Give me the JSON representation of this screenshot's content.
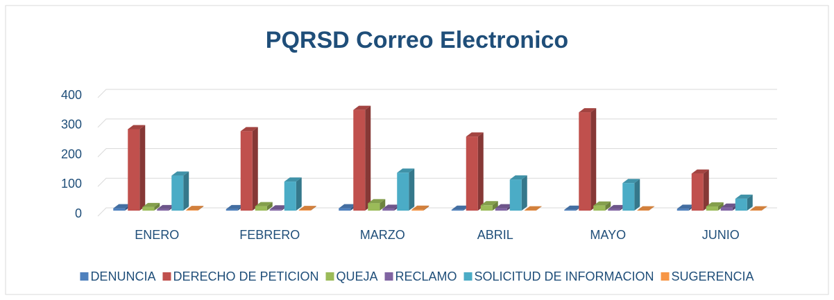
{
  "chart_data": {
    "type": "bar3d",
    "title": "PQRSD Correo Electronico",
    "categories": [
      "ENERO",
      "FEBRERO",
      "MARZO",
      "ABRIL",
      "MAYO",
      "JUNIO"
    ],
    "series": [
      {
        "name": "DENUNCIA",
        "color": "#4f81bd",
        "values": [
          8,
          5,
          8,
          3,
          3,
          6
        ]
      },
      {
        "name": "DERECHO DE PETICION",
        "color": "#c0504d",
        "values": [
          275,
          268,
          340,
          250,
          332,
          125
        ]
      },
      {
        "name": "QUEJA",
        "color": "#9bbb59",
        "values": [
          12,
          15,
          25,
          18,
          17,
          14
        ]
      },
      {
        "name": "RECLAMO",
        "color": "#8064a2",
        "values": [
          5,
          4,
          6,
          8,
          5,
          10
        ]
      },
      {
        "name": "SOLICITUD DE INFORMACION",
        "color": "#4bacc6",
        "values": [
          118,
          98,
          128,
          105,
          93,
          40
        ]
      },
      {
        "name": "SUGERENCIA",
        "color": "#f79646",
        "values": [
          2,
          2,
          3,
          1,
          1,
          1
        ]
      }
    ],
    "ylim": [
      0,
      400
    ],
    "yticks": [
      0,
      100,
      200,
      300,
      400
    ],
    "grid": true,
    "legend": "bottom"
  }
}
